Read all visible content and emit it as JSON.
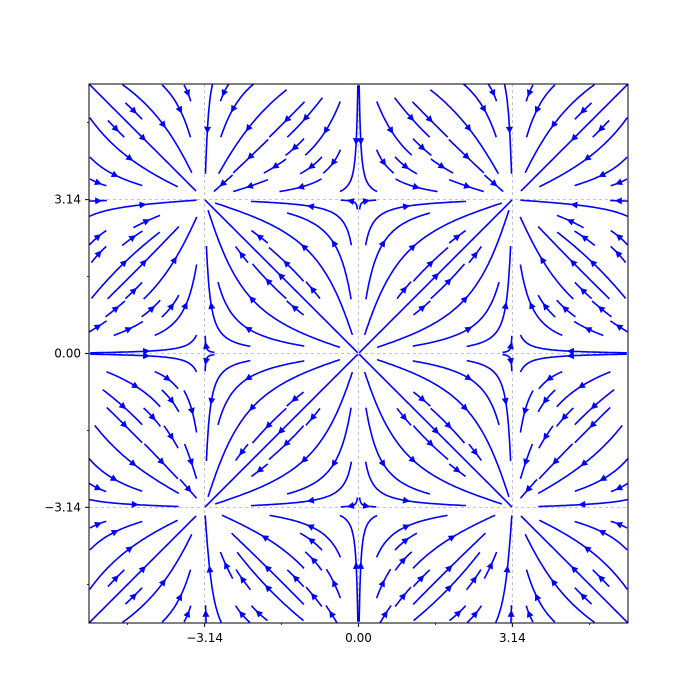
{
  "chart_data": {
    "type": "streamplot",
    "title": "",
    "xlabel": "",
    "ylabel": "",
    "field": {
      "u": "sin(x)",
      "v": "sin(y)"
    },
    "xlim": [
      -5.5,
      5.5
    ],
    "ylim": [
      -5.5,
      5.5
    ],
    "xticks": [
      {
        "value": -3.14,
        "label": "−3.14"
      },
      {
        "value": 0.0,
        "label": "0.00"
      },
      {
        "value": 3.14,
        "label": "3.14"
      }
    ],
    "yticks": [
      {
        "value": -3.14,
        "label": "−3.14"
      },
      {
        "value": 0.0,
        "label": "0.00"
      },
      {
        "value": 3.14,
        "label": "3.14"
      }
    ],
    "minor_ticks": [
      -4.712,
      -1.571,
      1.571,
      4.712
    ],
    "grid": true,
    "stream_color": "#0000ff",
    "grid_color": "#b0b0b0",
    "critical_points": [
      {
        "x": 0.0,
        "y": 0.0,
        "kind": "source"
      },
      {
        "x": -3.14,
        "y": 3.14,
        "kind": "sink"
      },
      {
        "x": 3.14,
        "y": 3.14,
        "kind": "sink"
      },
      {
        "x": -3.14,
        "y": -3.14,
        "kind": "sink"
      },
      {
        "x": 3.14,
        "y": -3.14,
        "kind": "sink"
      },
      {
        "x": 0.0,
        "y": 3.14,
        "kind": "saddle"
      },
      {
        "x": 0.0,
        "y": -3.14,
        "kind": "saddle"
      },
      {
        "x": -3.14,
        "y": 0.0,
        "kind": "saddle"
      },
      {
        "x": 3.14,
        "y": 0.0,
        "kind": "saddle"
      }
    ]
  }
}
